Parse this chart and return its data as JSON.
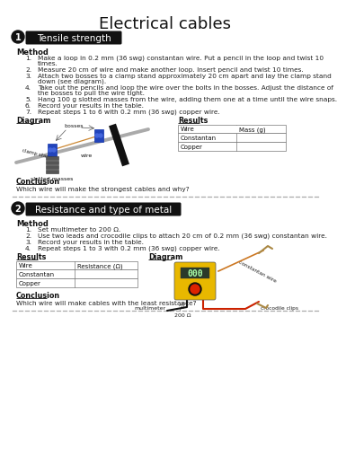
{
  "title": "Electrical cables",
  "section1_num": "1",
  "section1_title": "Tensile strength",
  "section1_method_label": "Method",
  "section1_steps": [
    [
      "Make a loop in 0.2 mm (36 swg) constantan wire. Put a pencil in the loop and twist 10",
      "times."
    ],
    [
      "Measure 20 cm of wire and make another loop. Insert pencil and twist 10 times."
    ],
    [
      "Attach two bosses to a clamp stand approximately 20 cm apart and lay the clamp stand",
      "down (see diagram)."
    ],
    [
      "Take out the pencils and loop the wire over the bolts in the bosses. Adjust the distance of",
      "the bosses to pull the wire tight."
    ],
    [
      "Hang 100 g slotted masses from the wire, adding them one at a time until the wire snaps."
    ],
    [
      "Record your results in the table."
    ],
    [
      "Repeat steps 1 to 6 with 0.2 mm (36 swg) copper wire."
    ]
  ],
  "section1_diagram_label": "Diagram",
  "section1_results_label": "Results",
  "section1_table_headers": [
    "Wire",
    "Mass (g)"
  ],
  "section1_table_rows": [
    "Constantan",
    "Copper"
  ],
  "section1_conclusion_label": "Conclusion",
  "section1_conclusion": "Which wire will make the strongest cables and why?",
  "section2_num": "2",
  "section2_title": "Resistance and type of metal",
  "section2_method_label": "Method",
  "section2_steps": [
    [
      "Set multimeter to 200 Ω."
    ],
    [
      "Use two leads and crocodile clips to attach 20 cm of 0.2 mm (36 swg) constantan wire."
    ],
    [
      "Record your results in the table."
    ],
    [
      "Repeat steps 1 to 3 with 0.2 mm (36 swg) copper wire."
    ]
  ],
  "section2_results_label": "Results",
  "section2_diagram_label": "Diagram",
  "section2_table_headers": [
    "Wire",
    "Resistance (Ω)"
  ],
  "section2_table_rows": [
    "Constantan",
    "Copper"
  ],
  "section2_conclusion_label": "Conclusion",
  "section2_conclusion": "Which wire will make cables with the least resistance?",
  "bg_color": "#ffffff",
  "header_bg": "#1a1a1a",
  "header_text_color": "#ffffff",
  "dashed_line_color": "#999999",
  "text_color": "#222222",
  "bold_color": "#111111",
  "indent_num": 22,
  "indent_text": 38
}
